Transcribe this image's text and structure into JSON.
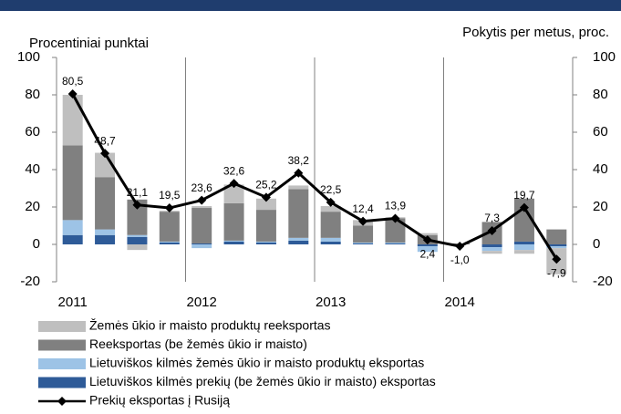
{
  "chart_data": {
    "type": "bar",
    "y_label": "Procentiniai punktai",
    "y2_label": "Pokytis per metus, proc.",
    "categories": [
      "2011",
      null,
      null,
      null,
      "2012",
      null,
      null,
      null,
      "2013",
      null,
      null,
      null,
      "2014",
      null,
      null,
      null
    ],
    "ylim": [
      -20,
      100
    ],
    "yticks": [
      -20,
      0,
      20,
      40,
      60,
      80,
      100
    ],
    "y2lim": [
      -20,
      100
    ],
    "y2ticks": [
      -20,
      0,
      20,
      40,
      60,
      80,
      100
    ],
    "series": [
      {
        "name": "Lietuviškos kilmės prekių (be žemės ūkio ir maisto) eksportas",
        "type": "bar",
        "color": "#2e5b98",
        "values": [
          5,
          5,
          4,
          1,
          0.5,
          1.5,
          1,
          2,
          1.5,
          0.5,
          0.5,
          -1,
          0,
          -1.5,
          1.5,
          -1
        ]
      },
      {
        "name": "Lietuviškos kilmės žemės ūkio ir maisto produktų eksportas",
        "type": "bar",
        "color": "#9dc3e6",
        "values": [
          8,
          3,
          1,
          0.5,
          -2,
          0.5,
          0.5,
          1.5,
          2,
          0.5,
          0.5,
          -3,
          0,
          -2,
          -3,
          -1
        ]
      },
      {
        "name": "Reeksportas (be žemės ūkio ir maisto)",
        "type": "bar",
        "color": "#808080",
        "values": [
          40,
          28,
          19,
          16,
          19,
          20,
          17,
          26,
          14,
          9,
          13,
          5,
          0.5,
          12,
          23,
          8
        ]
      },
      {
        "name": "Žemės ūkio ir maisto produktų reeksportas",
        "type": "bar",
        "color": "#bfbfbf",
        "values": [
          27,
          13,
          -3,
          0.5,
          1,
          10,
          6,
          2,
          3,
          3,
          0.5,
          1,
          0,
          -1.5,
          -2,
          -14
        ]
      },
      {
        "name": "Prekių eksportas į Rusiją",
        "type": "line",
        "axis": "y2",
        "color": "#000000",
        "values": [
          80.5,
          48.7,
          21.1,
          19.5,
          23.6,
          32.6,
          25.2,
          38.2,
          22.5,
          12.4,
          13.9,
          2.4,
          -1.0,
          7.3,
          19.7,
          -7.9
        ],
        "value_labels": [
          "80,5",
          "48,7",
          "21,1",
          "19,5",
          "23,6",
          "32,6",
          "25,2",
          "38,2",
          "22,5",
          "12,4",
          "13,9",
          "2,4",
          "-1,0",
          "7,3",
          "19,7",
          "-7,9"
        ]
      }
    ]
  }
}
